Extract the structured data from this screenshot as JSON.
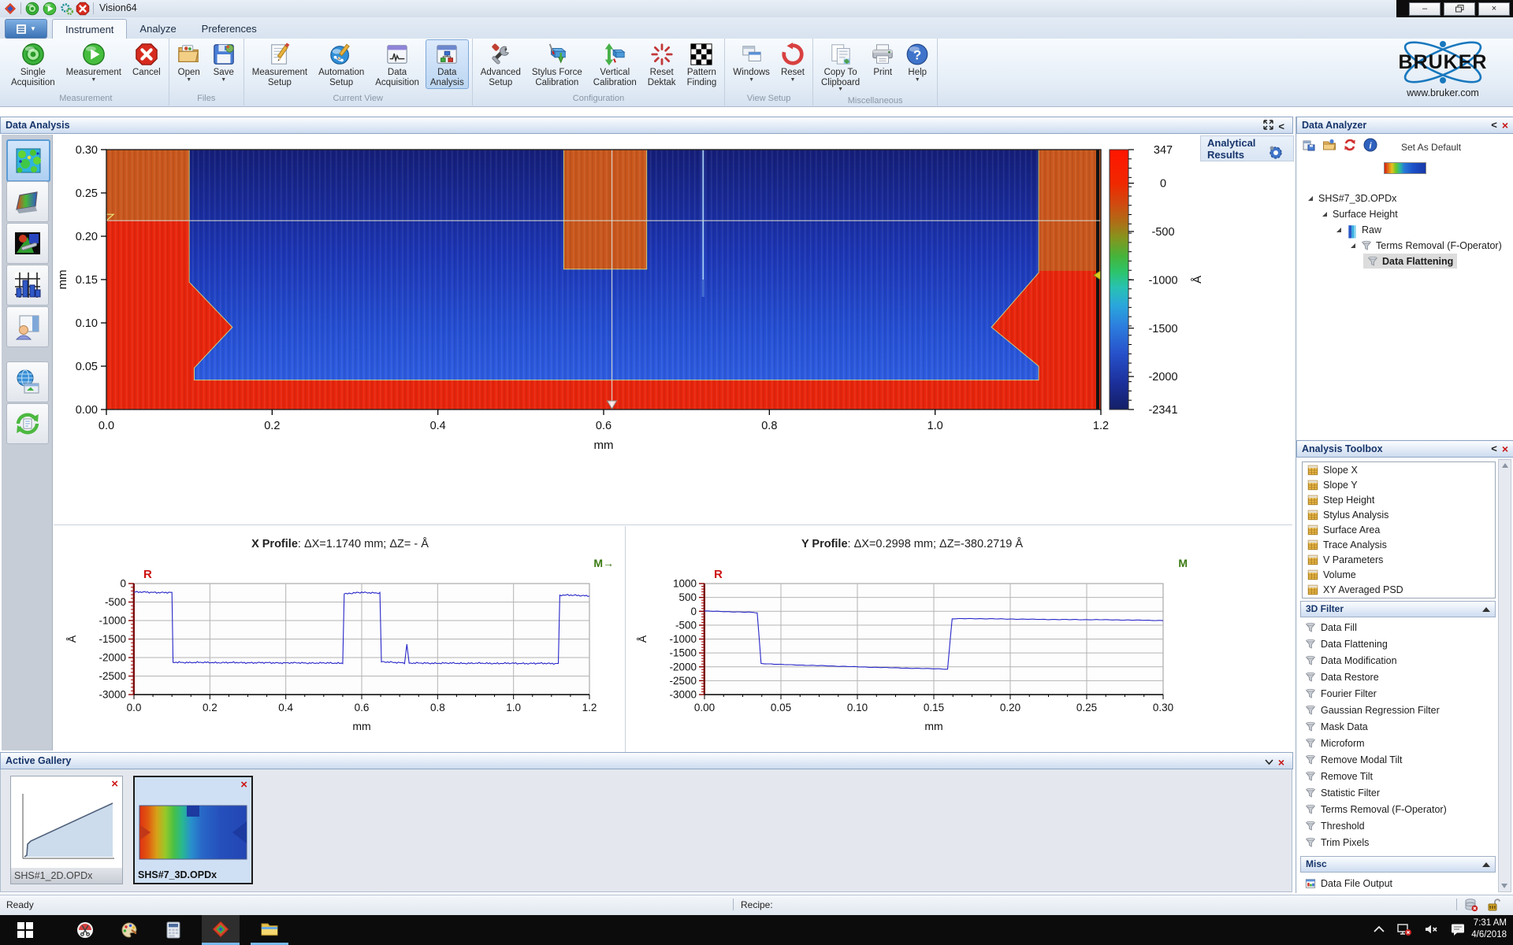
{
  "window": {
    "title": "Vision64",
    "controls": {
      "minimize": "–",
      "restore": "restore",
      "close": "×"
    }
  },
  "quick_access": [
    "app-logo-icon",
    "target-icon",
    "play-icon",
    "gears-icon",
    "cancel-icon"
  ],
  "ribbon": {
    "tabs": [
      {
        "label": "Instrument",
        "active": true
      },
      {
        "label": "Analyze",
        "active": false
      },
      {
        "label": "Preferences",
        "active": false
      }
    ],
    "groups": [
      {
        "label": "Measurement",
        "buttons": [
          {
            "label": "Single Acquisition",
            "icon": "target-icon"
          },
          {
            "label": "Measurement",
            "icon": "play-icon",
            "dropdown": true
          },
          {
            "label": "Cancel",
            "icon": "cancel-icon"
          }
        ]
      },
      {
        "label": "Files",
        "buttons": [
          {
            "label": "Open",
            "icon": "open-folder-icon",
            "dropdown": true
          },
          {
            "label": "Save",
            "icon": "save-icon",
            "dropdown": true
          }
        ]
      },
      {
        "label": "Current View",
        "buttons": [
          {
            "label": "Measurement Setup",
            "icon": "doc-pencil-icon"
          },
          {
            "label": "Automation Setup",
            "icon": "sphere-pencil-icon"
          },
          {
            "label": "Data Acquisition",
            "icon": "window-wave-icon"
          },
          {
            "label": "Data Analysis",
            "icon": "window-flow-icon",
            "active": true
          }
        ]
      },
      {
        "label": "Configuration",
        "buttons": [
          {
            "label": "Advanced Setup",
            "icon": "tools-icon"
          },
          {
            "label": "Stylus Force Calibration",
            "icon": "stylus-cal-icon"
          },
          {
            "label": "Vertical Calibration",
            "icon": "vertical-cal-icon"
          },
          {
            "label": "Reset Dektak",
            "icon": "starburst-icon"
          },
          {
            "label": "Pattern Finding",
            "icon": "checkerboard-icon"
          }
        ]
      },
      {
        "label": "View Setup",
        "buttons": [
          {
            "label": "Windows",
            "icon": "windows-cascade-icon",
            "dropdown": true
          },
          {
            "label": "Reset",
            "icon": "reset-arrow-icon",
            "dropdown": true
          }
        ]
      },
      {
        "label": "Miscellaneous",
        "buttons": [
          {
            "label": "Copy To Clipboard",
            "icon": "clipboard-icon",
            "dropdown": true
          },
          {
            "label": "Print",
            "icon": "printer-icon"
          },
          {
            "label": "Help",
            "icon": "help-icon",
            "dropdown": true
          }
        ]
      }
    ],
    "logo": {
      "brand": "BRUKER",
      "site": "www.bruker.com",
      "accent": "#1878be"
    }
  },
  "panels": {
    "data_analysis": {
      "title": "Data Analysis",
      "analytical_results": "Analytical Results"
    },
    "data_analyzer": {
      "title": "Data Analyzer",
      "toolbar_icons": [
        "export-icon",
        "open-small-icon",
        "refresh-icon",
        "info-icon"
      ],
      "set_default": "Set As Default",
      "tree": [
        {
          "label": "SHS#7_3D.OPDx",
          "level": 0,
          "expander": true,
          "icon": null,
          "selected": false
        },
        {
          "label": "Surface Height",
          "level": 1,
          "expander": true,
          "icon": null,
          "selected": false
        },
        {
          "label": "Raw",
          "level": 2,
          "expander": true,
          "icon": "colorbar-icon",
          "selected": false
        },
        {
          "label": "Terms Removal (F-Operator)",
          "level": 3,
          "expander": true,
          "icon": "funnel-icon",
          "selected": false
        },
        {
          "label": "Data Flattening",
          "level": 4,
          "expander": false,
          "icon": "funnel-icon",
          "selected": true
        }
      ]
    },
    "analysis_toolbox": {
      "title": "Analysis Toolbox",
      "analyses": [
        "Slope X",
        "Slope Y",
        "Step Height",
        "Stylus Analysis",
        "Surface Area",
        "Trace Analysis",
        "V Parameters",
        "Volume",
        "XY Averaged PSD"
      ],
      "analyses_icon": "calculator-icon",
      "filter_section": "3D Filter",
      "filters": [
        "Data Fill",
        "Data Flattening",
        "Data Modification",
        "Data Restore",
        "Fourier Filter",
        "Gaussian Regression Filter",
        "Mask Data",
        "Microform",
        "Remove Modal Tilt",
        "Remove Tilt",
        "Statistic Filter",
        "Terms Removal (F-Operator)",
        "Threshold",
        "Trim Pixels"
      ],
      "filters_icon": "funnel-icon",
      "misc_section": "Misc",
      "misc_items": [
        {
          "label": "Data File Output",
          "icon": "file-output-icon"
        }
      ]
    },
    "active_gallery": {
      "title": "Active Gallery",
      "items": [
        {
          "label": "SHS#1_2D.OPDx",
          "thumb": "line-thumb",
          "selected": false
        },
        {
          "label": "SHS#7_3D.OPDx",
          "thumb": "heatmap-thumb",
          "selected": true
        }
      ]
    }
  },
  "left_toolbar": [
    "surface-map-icon",
    "surface-3d-icon",
    "image-tools-icon",
    "histogram-icon",
    "report-icon",
    "web-export-icon",
    "refresh-doc-icon"
  ],
  "status_bar": {
    "ready": "Ready",
    "recipe": "Recipe:",
    "icons": [
      "database-error-icon",
      "lock-open-icon"
    ]
  },
  "taskbar": {
    "apps": [
      "start-icon",
      "snip-icon",
      "paint-icon",
      "calculator-app-icon",
      "vision64-icon",
      "explorer-icon"
    ],
    "tray": [
      "chevron-up-icon",
      "network-error-icon",
      "volume-muted-icon",
      "chat-icon"
    ],
    "time": "7:31 AM",
    "date": "4/6/2018"
  },
  "chart_data": [
    {
      "type": "heatmap",
      "name": "surface-height-map",
      "xlabel": "mm",
      "ylabel": "mm",
      "xlim": [
        0,
        1.2
      ],
      "ylim": [
        0,
        0.3
      ],
      "xticks": [
        "0.0",
        "0.2",
        "0.4",
        "0.6",
        "0.8",
        "1.0",
        "1.2"
      ],
      "yticks": [
        "0.00",
        "0.05",
        "0.10",
        "0.15",
        "0.20",
        "0.25",
        "0.30"
      ],
      "colorbar": {
        "label": "Å",
        "tick_values": [
          347,
          0,
          -500,
          -1000,
          -1500,
          -2000,
          -2341
        ],
        "range": [
          347,
          -2341
        ]
      },
      "regions": {
        "high_color": "#e8250c",
        "orange_color": "#c9571d",
        "low_top_color": "#141e78",
        "low_bottom_color": "#2e5ce0",
        "low_region_polygon_mm": [
          [
            0.1,
            0.3
          ],
          [
            0.1,
            0.147
          ],
          [
            0.152,
            0.095
          ],
          [
            0.106,
            0.048
          ],
          [
            0.106,
            0.034
          ],
          [
            1.125,
            0.034
          ],
          [
            1.125,
            0.05
          ],
          [
            1.068,
            0.095
          ],
          [
            1.125,
            0.158
          ],
          [
            1.125,
            0.3
          ]
        ],
        "high_block_mm": {
          "x0": 0.552,
          "x1": 0.652,
          "y0": 0.162,
          "y1": 0.3
        },
        "orange_left_mm": {
          "x0": 0,
          "x1": 0.1,
          "y0": 0.218,
          "y1": 0.3
        },
        "orange_right_mm": {
          "x0": 1.125,
          "x1": 1.2,
          "y0": 0.16,
          "y1": 0.3
        },
        "scratch": {
          "x": 0.72,
          "y0": 0.13,
          "y1": 0.3
        },
        "crosshair": {
          "x": 0.61,
          "y": 0.218
        }
      }
    },
    {
      "type": "line",
      "name": "x-profile",
      "title_bold": "X Profile",
      "title_rest": ": ΔX=1.1740 mm; ΔZ= -  Å",
      "marker_left": "R",
      "marker_right": "M→",
      "xlabel": "mm",
      "ylabel": "Å",
      "xlim": [
        0,
        1.2
      ],
      "ylim": [
        -3000,
        0
      ],
      "xticks": [
        "0.0",
        "0.2",
        "0.4",
        "0.6",
        "0.8",
        "1.0",
        "1.2"
      ],
      "yticks": [
        0,
        -500,
        -1000,
        -1500,
        -2000,
        -2500,
        -3000
      ],
      "line_color": "#2726c8",
      "noise": 26,
      "anchors": [
        [
          0,
          -230
        ],
        [
          0.1,
          -245
        ],
        [
          0.103,
          -2130
        ],
        [
          0.55,
          -2150
        ],
        [
          0.554,
          -280
        ],
        [
          0.6,
          -240
        ],
        [
          0.648,
          -255
        ],
        [
          0.652,
          -2120
        ],
        [
          0.713,
          -2140
        ],
        [
          0.719,
          -1640
        ],
        [
          0.725,
          -2150
        ],
        [
          1.118,
          -2160
        ],
        [
          1.122,
          -310
        ],
        [
          1.2,
          -330
        ]
      ]
    },
    {
      "type": "line",
      "name": "y-profile",
      "title_bold": "Y Profile",
      "title_rest": ": ΔX=0.2998 mm; ΔZ=-380.2719 Å",
      "marker_left": "R",
      "marker_right": "M",
      "xlabel": "mm",
      "ylabel": "Å",
      "xlim": [
        0,
        0.3
      ],
      "ylim": [
        -3000,
        1000
      ],
      "xticks": [
        "0.00",
        "0.05",
        "0.10",
        "0.15",
        "0.20",
        "0.25",
        "0.30"
      ],
      "yticks": [
        1000,
        500,
        0,
        -500,
        -1000,
        -1500,
        -2000,
        -2500,
        -3000
      ],
      "line_color": "#2726c8",
      "noise": 9,
      "anchors": [
        [
          0,
          10
        ],
        [
          0.015,
          -15
        ],
        [
          0.032,
          -40
        ],
        [
          0.0345,
          -60
        ],
        [
          0.037,
          -1880
        ],
        [
          0.05,
          -1915
        ],
        [
          0.08,
          -1965
        ],
        [
          0.105,
          -2010
        ],
        [
          0.135,
          -2050
        ],
        [
          0.156,
          -2075
        ],
        [
          0.159,
          -2085
        ],
        [
          0.162,
          -270
        ],
        [
          0.175,
          -265
        ],
        [
          0.2,
          -280
        ],
        [
          0.23,
          -295
        ],
        [
          0.26,
          -305
        ],
        [
          0.3,
          -330
        ]
      ]
    }
  ]
}
